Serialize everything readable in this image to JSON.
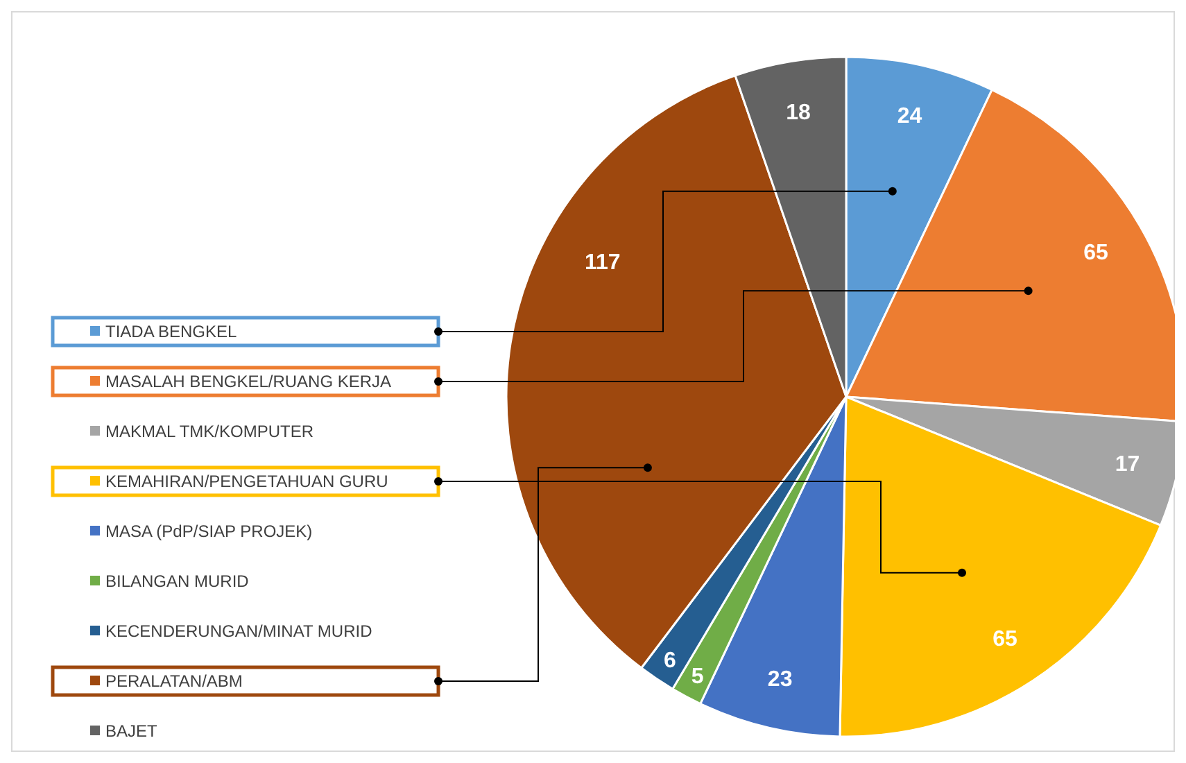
{
  "chart_data": {
    "type": "pie",
    "categories": [
      "TIADA BENGKEL",
      "MASALAH BENGKEL/RUANG KERJA",
      "MAKMAL TMK/KOMPUTER",
      "KEMAHIRAN/PENGETAHUAN GURU",
      "MASA (PdP/SIAP PROJEK)",
      "BILANGAN MURID",
      "KECENDERUNGAN/MINAT MURID",
      "PERALATAN/ABM",
      "BAJET"
    ],
    "values": [
      24,
      65,
      17,
      65,
      23,
      5,
      6,
      117,
      18
    ],
    "colors": [
      "#5b9bd5",
      "#ed7d31",
      "#a5a5a5",
      "#ffc000",
      "#4472c4",
      "#70ad47",
      "#255e91",
      "#9e480e",
      "#636363"
    ],
    "data_labels": true,
    "legend": "left"
  }
}
